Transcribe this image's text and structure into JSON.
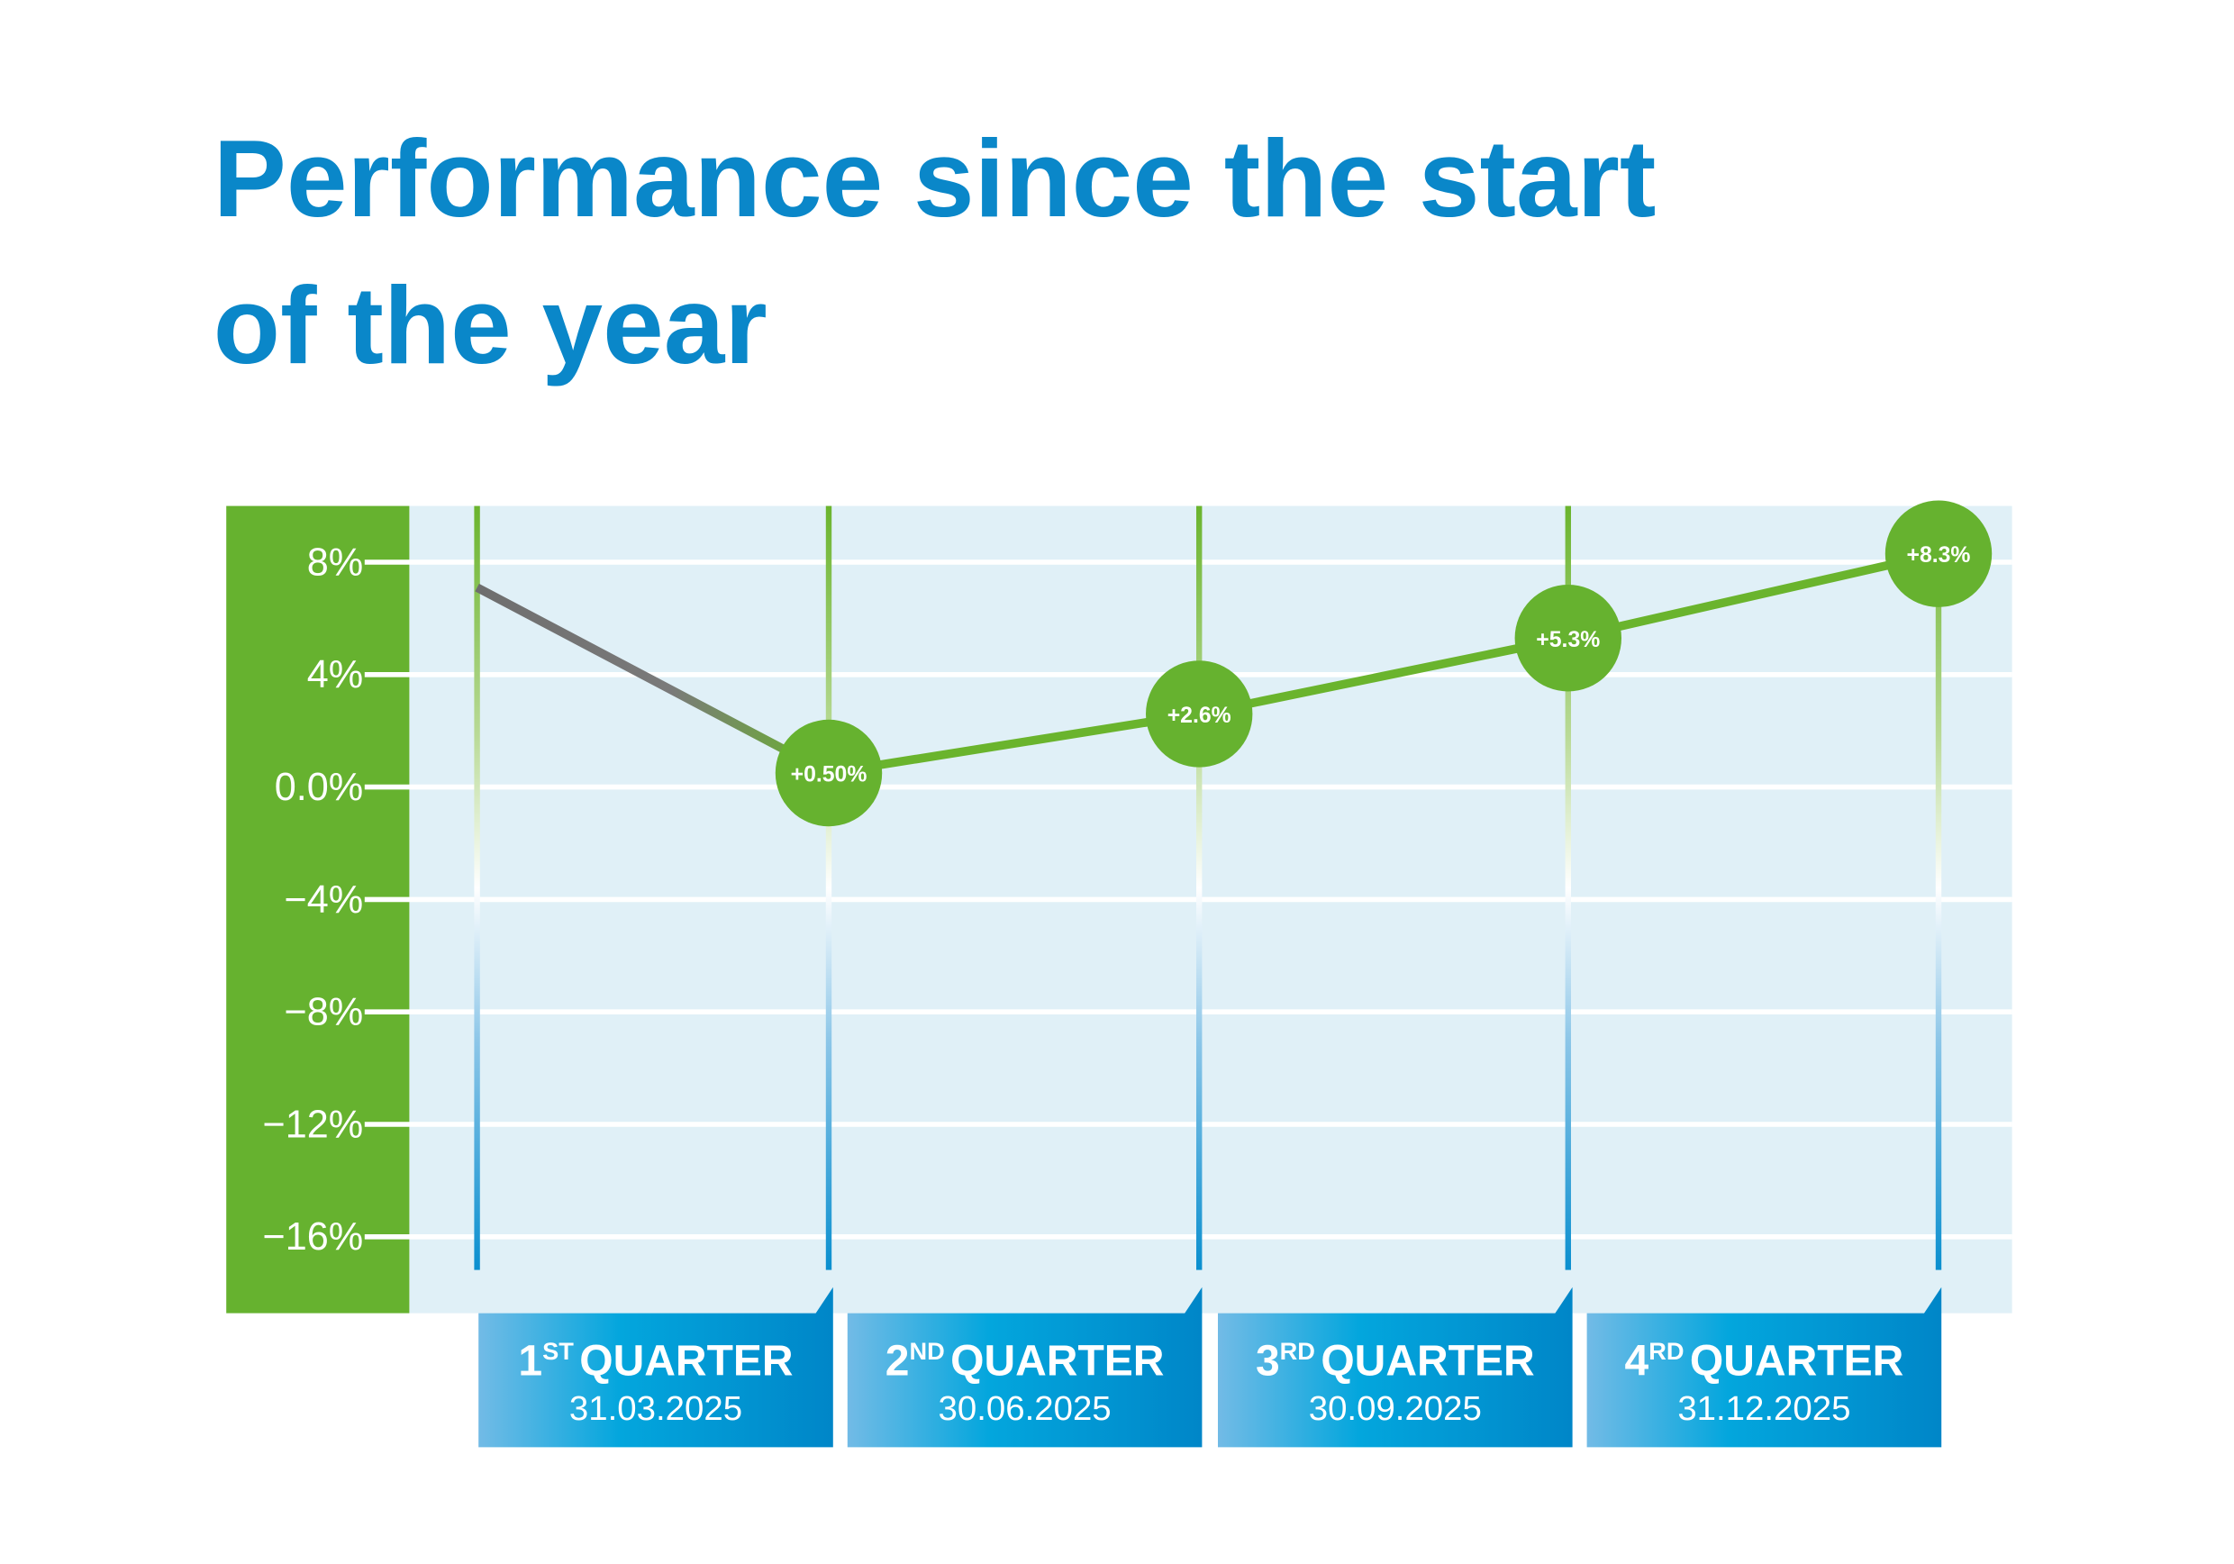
{
  "chart_data": {
    "type": "line",
    "title": "Performance since the start of the year",
    "title_lines": [
      "Performance since the start",
      "of the year"
    ],
    "ylim": [
      -18,
      10
    ],
    "y_ticks": [
      8,
      4,
      0,
      -4,
      -8,
      -12,
      -16
    ],
    "y_tick_labels": [
      "8%",
      "4%",
      "0.0%",
      "−4%",
      "−8%",
      "−12%",
      "−16%"
    ],
    "grid": true,
    "start_value": 7.1,
    "categories": [
      {
        "ordinal": "1",
        "suffix": "ST",
        "word": "QUARTER",
        "date": "31.03.2025"
      },
      {
        "ordinal": "2",
        "suffix": "ND",
        "word": "QUARTER",
        "date": "30.06.2025"
      },
      {
        "ordinal": "3",
        "suffix": "RD",
        "word": "QUARTER",
        "date": "30.09.2025"
      },
      {
        "ordinal": "4",
        "suffix": "RD",
        "word": "QUARTER",
        "date": "31.12.2025"
      }
    ],
    "values": [
      0.5,
      2.6,
      5.3,
      8.3
    ],
    "data_labels": [
      "+0.50%",
      "+2.6%",
      "+5.3%",
      "+8.3%"
    ],
    "colors": {
      "title": "#0a87c9",
      "line": "#6ab42d",
      "axis_panel": "#66b22f",
      "plot_bg": "#e0f0f7",
      "start_segment": "#6e6e6e",
      "label_box_light": "#72bbe6",
      "label_box_mid": "#03a6dd",
      "label_box_dark": "#0086c8"
    }
  }
}
